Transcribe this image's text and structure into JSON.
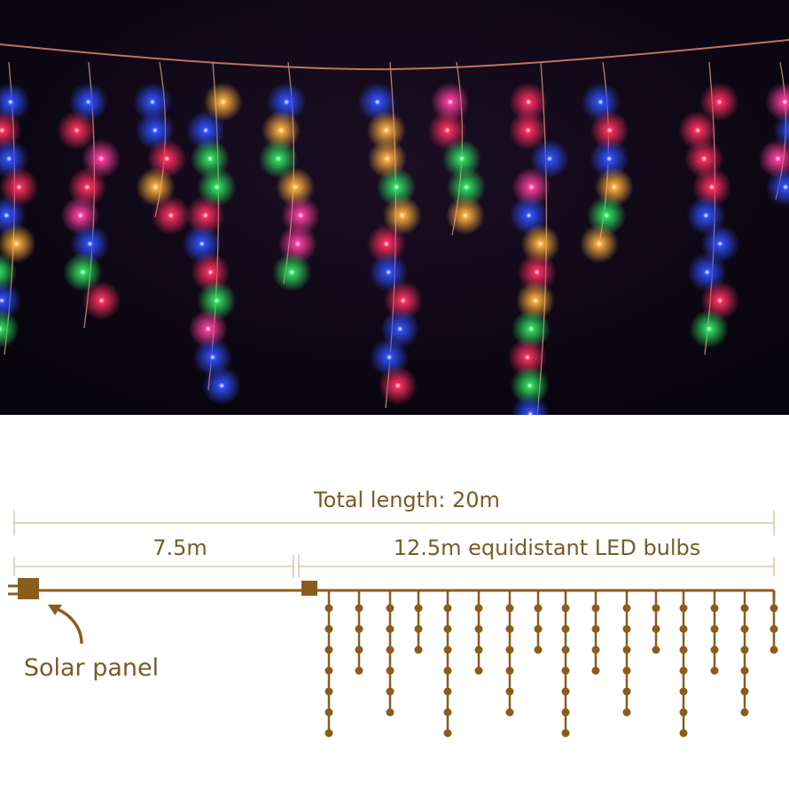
{
  "photo": {
    "subject": "multi-colour icicle LED lights at night",
    "light_colors": [
      "#ff3060",
      "#ffb040",
      "#3050ff",
      "#30e060",
      "#ff40a0"
    ]
  },
  "diagram": {
    "total_label": "Total length: 20m",
    "lead_label": "7.5m",
    "bulbs_label": "12.5m equidistant LED bulbs",
    "solar_label": "Solar panel",
    "color": "#8a5d1c",
    "strand_bulb_counts": [
      7,
      4,
      6,
      3,
      7,
      4,
      6,
      3,
      7,
      4,
      6,
      3,
      7,
      4,
      6,
      3
    ]
  }
}
